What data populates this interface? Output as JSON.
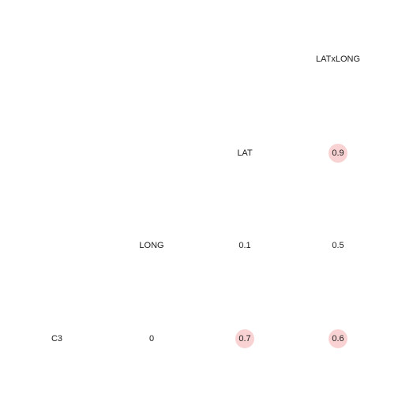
{
  "chart_data": {
    "type": "table",
    "variables": [
      "C3",
      "LONG",
      "LAT",
      "LATxLONG"
    ],
    "cells": [
      {
        "row": "LONG",
        "col": "C3",
        "value": 0,
        "label": "0",
        "highlighted": false
      },
      {
        "row": "LAT",
        "col": "C3",
        "value": 0.7,
        "label": "0.7",
        "highlighted": true
      },
      {
        "row": "LAT",
        "col": "LONG",
        "value": 0.1,
        "label": "0.1",
        "highlighted": false
      },
      {
        "row": "LATxLONG",
        "col": "C3",
        "value": 0.6,
        "label": "0.6",
        "highlighted": true
      },
      {
        "row": "LATxLONG",
        "col": "LONG",
        "value": 0.5,
        "label": "0.5",
        "highlighted": false
      },
      {
        "row": "LATxLONG",
        "col": "LAT",
        "value": 0.9,
        "label": "0.9",
        "highlighted": true
      }
    ],
    "highlight_color": "#f9d3d3",
    "text_color": "#1a1a1a",
    "background": "#ffffff"
  }
}
